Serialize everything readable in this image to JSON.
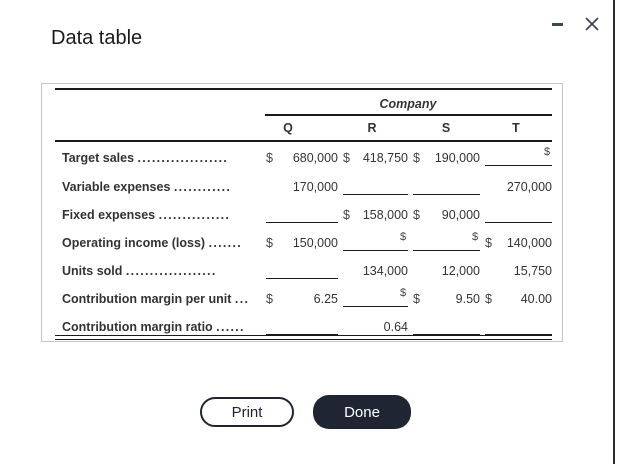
{
  "window": {
    "title": "Data table",
    "minimize_icon": "minimize-icon",
    "close_icon": "close-icon",
    "minimize_glyph": "",
    "close_glyph": "✕"
  },
  "table": {
    "group_header": "Company",
    "columns": [
      "Q",
      "R",
      "S",
      "T"
    ],
    "rows": [
      {
        "label": "Target sales",
        "dots": "...................",
        "cells": [
          {
            "dollar": "$",
            "value": "680,000",
            "blank": false
          },
          {
            "dollar": "$",
            "value": "418,750",
            "blank": false
          },
          {
            "dollar": "$",
            "value": "190,000",
            "blank": false
          },
          {
            "dollar": "$",
            "value": "",
            "blank": true
          }
        ]
      },
      {
        "label": "Variable expenses",
        "dots": "............",
        "cells": [
          {
            "dollar": "",
            "value": "170,000",
            "blank": false
          },
          {
            "dollar": "",
            "value": "",
            "blank": true
          },
          {
            "dollar": "",
            "value": "",
            "blank": true
          },
          {
            "dollar": "",
            "value": "270,000",
            "blank": false
          }
        ]
      },
      {
        "label": "Fixed expenses",
        "dots": "...............",
        "cells": [
          {
            "dollar": "",
            "value": "",
            "blank": true
          },
          {
            "dollar": "$",
            "value": "158,000",
            "blank": false
          },
          {
            "dollar": "$",
            "value": "90,000",
            "blank": false
          },
          {
            "dollar": "",
            "value": "",
            "blank": true
          }
        ]
      },
      {
        "label": "Operating income (loss)",
        "dots": ".......",
        "cells": [
          {
            "dollar": "$",
            "value": "150,000",
            "blank": false
          },
          {
            "dollar": "$",
            "value": "",
            "blank": true
          },
          {
            "dollar": "$",
            "value": "",
            "blank": true
          },
          {
            "dollar": "$",
            "value": "140,000",
            "blank": false
          }
        ]
      },
      {
        "label": "Units sold",
        "dots": "...................",
        "cells": [
          {
            "dollar": "",
            "value": "",
            "blank": true
          },
          {
            "dollar": "",
            "value": "134,000",
            "blank": false
          },
          {
            "dollar": "",
            "value": "12,000",
            "blank": false
          },
          {
            "dollar": "",
            "value": "15,750",
            "blank": false
          }
        ]
      },
      {
        "label": "Contribution margin per unit",
        "dots": "...",
        "cells": [
          {
            "dollar": "$",
            "value": "6.25",
            "blank": false
          },
          {
            "dollar": "$",
            "value": "",
            "blank": true
          },
          {
            "dollar": "$",
            "value": "9.50",
            "blank": false
          },
          {
            "dollar": "$",
            "value": "40.00",
            "blank": false
          }
        ]
      },
      {
        "label": "Contribution margin ratio",
        "dots": "......",
        "cells": [
          {
            "dollar": "",
            "value": "",
            "blank": true
          },
          {
            "dollar": "",
            "value": "0.64",
            "blank": false
          },
          {
            "dollar": "",
            "value": "",
            "blank": true
          },
          {
            "dollar": "",
            "value": "",
            "blank": true
          }
        ]
      }
    ]
  },
  "buttons": {
    "print": "Print",
    "done": "Done"
  }
}
